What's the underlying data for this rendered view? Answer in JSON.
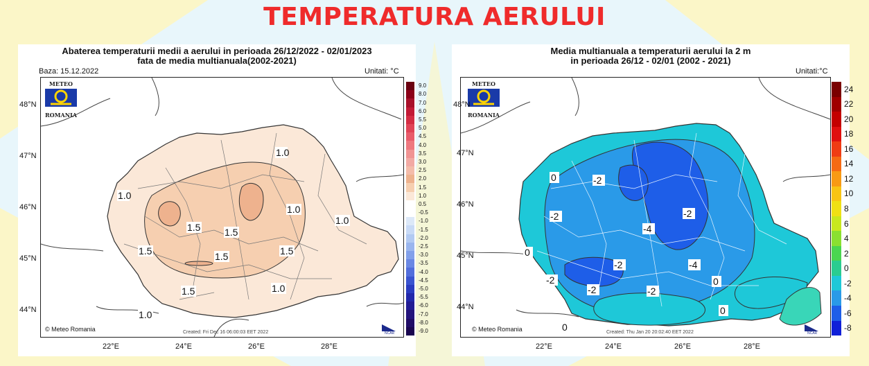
{
  "page": {
    "title": "TEMPERATURA AERULUI"
  },
  "colors": {
    "title": "#ef2b2b",
    "background": "#e8f6fb",
    "rays": "#fbf6c8"
  },
  "left_map": {
    "title_line1": "Abaterea temperaturii medii a aerului in perioada 26/12/2022 - 02/01/2023",
    "title_line2": "fata de media multianuala(2002-2021)",
    "base": "Baza: 15.12.2022",
    "units": "Unitati: °C",
    "logo_top": "METEO",
    "logo_bottom": "ROMANIA",
    "credit": "© Meteo Romania",
    "created": "Created: Fri Dec 16 06:00:03 EET 2022",
    "ncar": "NCAR",
    "lat_labels": [
      "48°N",
      "47°N",
      "46°N",
      "45°N",
      "44°N"
    ],
    "lon_labels": [
      "22°E",
      "24°E",
      "26°E",
      "28°E"
    ],
    "contour_labels": [
      "1.0",
      "1.5",
      "1.5",
      "1.5",
      "1.5",
      "1.0",
      "1.0",
      "1.5",
      "1.0",
      "1.0",
      "1.5",
      "1.0"
    ],
    "colorbar_ticks": [
      "9.0",
      "8.0",
      "7.0",
      "6.0",
      "5.5",
      "5.0",
      "4.5",
      "4.0",
      "3.5",
      "3.0",
      "2.5",
      "2.0",
      "1.5",
      "1.0",
      "0.5",
      "-0.5",
      "-1.0",
      "-1.5",
      "-2.0",
      "-2.5",
      "-3.0",
      "-3.5",
      "-4.0",
      "-4.5",
      "-5.0",
      "-5.5",
      "-6.0",
      "-7.0",
      "-8.0",
      "-9.0"
    ]
  },
  "right_map": {
    "title_line1": "Media multianuala a temperaturii aerului la 2 m",
    "title_line2": "in perioada 26/12 - 02/01 (2002 - 2021)",
    "units": "Unitati:°C",
    "logo_top": "METEO",
    "logo_bottom": "ROMANIA",
    "credit": "© Meteo Romania",
    "created": "Created: Thu Jan 20 20:02:40 EET 2022",
    "ncar": "NCAR",
    "lat_labels": [
      "48°N",
      "47°N",
      "46°N",
      "45°N",
      "44°N"
    ],
    "lon_labels": [
      "22°E",
      "24°E",
      "26°E",
      "28°E"
    ],
    "contour_labels": [
      "0",
      "-2",
      "-2",
      "-2",
      "-4",
      "-2",
      "0",
      "-2",
      "-2",
      "-4",
      "0",
      "-2",
      "0",
      "0"
    ],
    "colorbar_ticks": [
      "24",
      "22",
      "20",
      "18",
      "16",
      "14",
      "12",
      "10",
      "8",
      "6",
      "4",
      "2",
      "0",
      "-2",
      "-4",
      "-6",
      "-8"
    ]
  }
}
